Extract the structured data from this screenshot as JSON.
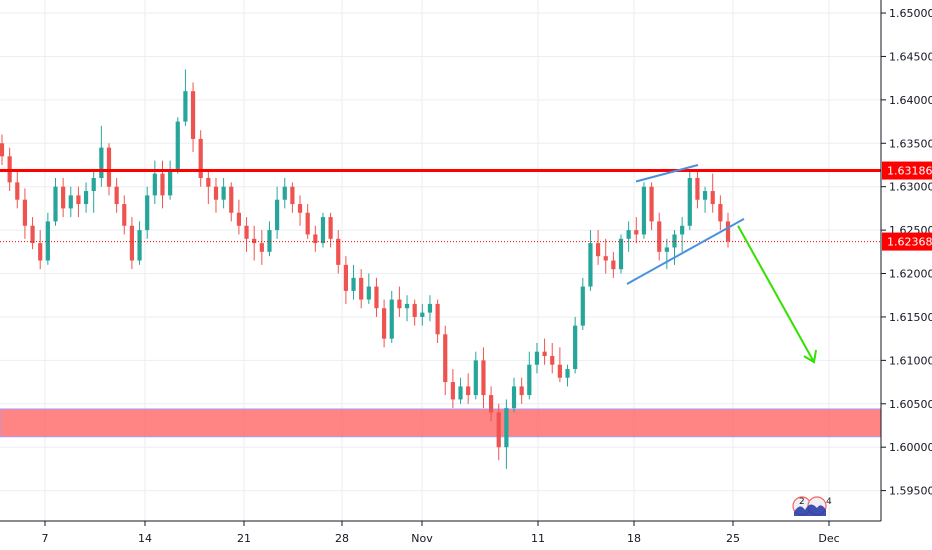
{
  "chart_data": {
    "type": "candlestick",
    "title": "",
    "xlabel": "",
    "ylabel": "",
    "ylim": [
      1.5915,
      1.6515
    ],
    "y_ticks": [
      "1.65000",
      "1.64500",
      "1.64000",
      "1.63500",
      "1.63000",
      "1.62500",
      "1.62000",
      "1.61500",
      "1.61000",
      "1.60500",
      "1.60000",
      "1.59500"
    ],
    "x_ticks": [
      "7",
      "14",
      "21",
      "28",
      "Nov",
      "11",
      "18",
      "25",
      "Dec"
    ],
    "grid": true,
    "colors": {
      "up": "#26a69a",
      "down": "#ef5350",
      "resistance": "#ff0000",
      "support_zone": "#ff6f6f",
      "channel": "#4a90e2",
      "arrow": "#33e000",
      "current": "#ff0000"
    },
    "price_tags": [
      {
        "name": "resistance",
        "value": "1.63186"
      },
      {
        "name": "last-price",
        "value": "1.62368"
      }
    ],
    "resistance_level": 1.63186,
    "last_price": 1.62368,
    "support_zone": [
      1.6012,
      1.6044
    ],
    "channel_upper": [
      [
        1.6306,
        1.6325
      ]
    ],
    "channel_lower": [
      [
        1.6188,
        1.6263
      ]
    ],
    "projection": {
      "from": 1.6255,
      "to": 1.6098
    },
    "watermark": "TradingView logo",
    "series": [
      {
        "ohlc": [
          [
            1.635,
            1.636,
            1.6325,
            1.6335
          ],
          [
            1.6335,
            1.6345,
            1.6295,
            1.6305
          ],
          [
            1.6305,
            1.6318,
            1.6275,
            1.6285
          ],
          [
            1.6285,
            1.6298,
            1.624,
            1.6255
          ],
          [
            1.6255,
            1.6265,
            1.6228,
            1.6235
          ],
          [
            1.6235,
            1.625,
            1.6205,
            1.6215
          ],
          [
            1.6215,
            1.627,
            1.621,
            1.626
          ],
          [
            1.626,
            1.631,
            1.6255,
            1.63
          ],
          [
            1.63,
            1.631,
            1.6265,
            1.6275
          ],
          [
            1.6275,
            1.63,
            1.6265,
            1.629
          ],
          [
            1.629,
            1.63,
            1.6265,
            1.628
          ],
          [
            1.628,
            1.6305,
            1.627,
            1.6295
          ],
          [
            1.6295,
            1.632,
            1.627,
            1.631
          ],
          [
            1.631,
            1.637,
            1.63,
            1.6345
          ],
          [
            1.6345,
            1.635,
            1.629,
            1.63
          ],
          [
            1.63,
            1.631,
            1.627,
            1.628
          ],
          [
            1.628,
            1.629,
            1.6245,
            1.6255
          ],
          [
            1.6255,
            1.6265,
            1.6205,
            1.6215
          ],
          [
            1.6215,
            1.626,
            1.621,
            1.625
          ],
          [
            1.625,
            1.63,
            1.624,
            1.629
          ],
          [
            1.629,
            1.633,
            1.628,
            1.6315
          ],
          [
            1.6315,
            1.633,
            1.6275,
            1.629
          ],
          [
            1.629,
            1.633,
            1.6285,
            1.632
          ],
          [
            1.632,
            1.638,
            1.6315,
            1.6375
          ],
          [
            1.6375,
            1.6435,
            1.637,
            1.641
          ],
          [
            1.641,
            1.642,
            1.634,
            1.6355
          ],
          [
            1.6355,
            1.6365,
            1.63,
            1.631
          ],
          [
            1.631,
            1.632,
            1.628,
            1.63
          ],
          [
            1.63,
            1.631,
            1.627,
            1.6285
          ],
          [
            1.6285,
            1.631,
            1.6275,
            1.63
          ],
          [
            1.63,
            1.6305,
            1.626,
            1.627
          ],
          [
            1.627,
            1.6285,
            1.6245,
            1.6255
          ],
          [
            1.6255,
            1.6265,
            1.6225,
            1.624
          ],
          [
            1.624,
            1.6255,
            1.6215,
            1.6235
          ],
          [
            1.6235,
            1.625,
            1.621,
            1.6225
          ],
          [
            1.6225,
            1.626,
            1.622,
            1.625
          ],
          [
            1.625,
            1.63,
            1.624,
            1.6285
          ],
          [
            1.6285,
            1.631,
            1.6275,
            1.63
          ],
          [
            1.63,
            1.6305,
            1.627,
            1.628
          ],
          [
            1.628,
            1.629,
            1.6255,
            1.627
          ],
          [
            1.627,
            1.628,
            1.624,
            1.6245
          ],
          [
            1.6245,
            1.6255,
            1.6225,
            1.6235
          ],
          [
            1.6235,
            1.627,
            1.623,
            1.6265
          ],
          [
            1.6265,
            1.627,
            1.623,
            1.624
          ],
          [
            1.624,
            1.625,
            1.62,
            1.621
          ],
          [
            1.621,
            1.622,
            1.6165,
            1.618
          ],
          [
            1.618,
            1.621,
            1.617,
            1.6195
          ],
          [
            1.6195,
            1.6205,
            1.616,
            1.617
          ],
          [
            1.617,
            1.62,
            1.6165,
            1.6185
          ],
          [
            1.6185,
            1.6195,
            1.615,
            1.616
          ],
          [
            1.616,
            1.617,
            1.6115,
            1.6125
          ],
          [
            1.6125,
            1.618,
            1.612,
            1.617
          ],
          [
            1.617,
            1.6185,
            1.615,
            1.616
          ],
          [
            1.616,
            1.6175,
            1.6145,
            1.6165
          ],
          [
            1.6165,
            1.617,
            1.614,
            1.615
          ],
          [
            1.615,
            1.6165,
            1.614,
            1.6155
          ],
          [
            1.6155,
            1.6175,
            1.6145,
            1.6165
          ],
          [
            1.6165,
            1.617,
            1.612,
            1.613
          ],
          [
            1.613,
            1.614,
            1.606,
            1.6075
          ],
          [
            1.6075,
            1.609,
            1.6045,
            1.6055
          ],
          [
            1.6055,
            1.608,
            1.605,
            1.607
          ],
          [
            1.607,
            1.6085,
            1.605,
            1.606
          ],
          [
            1.606,
            1.611,
            1.6055,
            1.61
          ],
          [
            1.61,
            1.6115,
            1.6045,
            1.606
          ],
          [
            1.606,
            1.607,
            1.603,
            1.604
          ],
          [
            1.604,
            1.605,
            1.5985,
            1.6
          ],
          [
            1.6,
            1.6055,
            1.5975,
            1.6045
          ],
          [
            1.6045,
            1.608,
            1.604,
            1.607
          ],
          [
            1.607,
            1.608,
            1.605,
            1.606
          ],
          [
            1.606,
            1.611,
            1.6055,
            1.6095
          ],
          [
            1.6095,
            1.612,
            1.6085,
            1.611
          ],
          [
            1.611,
            1.6125,
            1.6095,
            1.6105
          ],
          [
            1.6105,
            1.612,
            1.6085,
            1.6095
          ],
          [
            1.6095,
            1.6115,
            1.6075,
            1.608
          ],
          [
            1.608,
            1.6095,
            1.607,
            1.609
          ],
          [
            1.609,
            1.615,
            1.6085,
            1.614
          ],
          [
            1.614,
            1.6195,
            1.6135,
            1.6185
          ],
          [
            1.6185,
            1.625,
            1.618,
            1.6235
          ],
          [
            1.6235,
            1.625,
            1.621,
            1.622
          ],
          [
            1.622,
            1.624,
            1.62,
            1.6215
          ],
          [
            1.6215,
            1.6225,
            1.6195,
            1.6205
          ],
          [
            1.6205,
            1.6245,
            1.62,
            1.624
          ],
          [
            1.624,
            1.626,
            1.6225,
            1.625
          ],
          [
            1.625,
            1.6265,
            1.6235,
            1.6245
          ],
          [
            1.6245,
            1.6305,
            1.624,
            1.63
          ],
          [
            1.63,
            1.6305,
            1.625,
            1.626
          ],
          [
            1.626,
            1.627,
            1.6215,
            1.6225
          ],
          [
            1.6225,
            1.624,
            1.6205,
            1.623
          ],
          [
            1.623,
            1.625,
            1.621,
            1.6245
          ],
          [
            1.6245,
            1.6265,
            1.6225,
            1.6255
          ],
          [
            1.6255,
            1.632,
            1.625,
            1.631
          ],
          [
            1.631,
            1.632,
            1.6275,
            1.6285
          ],
          [
            1.6285,
            1.63,
            1.627,
            1.6295
          ],
          [
            1.6295,
            1.6315,
            1.627,
            1.628
          ],
          [
            1.628,
            1.629,
            1.625,
            1.626
          ],
          [
            1.626,
            1.627,
            1.623,
            1.6237
          ]
        ]
      }
    ]
  }
}
